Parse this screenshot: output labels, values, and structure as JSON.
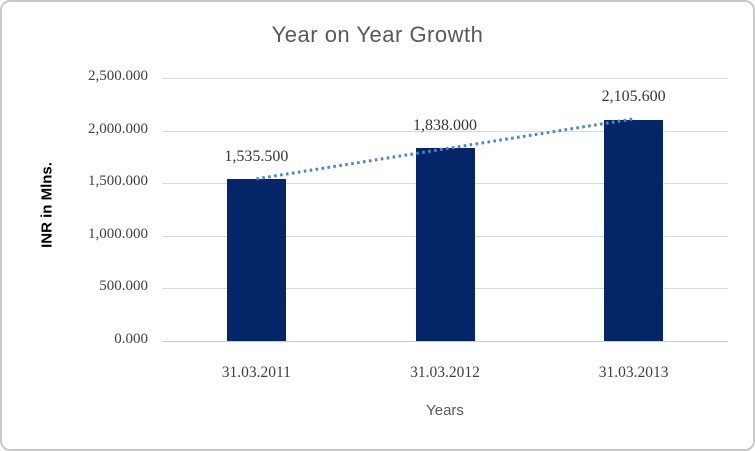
{
  "chart_data": {
    "type": "bar",
    "title": "Year on Year Growth",
    "xlabel": "Years",
    "ylabel": "INR in Mlns.",
    "categories": [
      "31.03.2011",
      "31.03.2012",
      "31.03.2013"
    ],
    "values": [
      1535.5,
      1838.0,
      2105.6
    ],
    "data_labels": [
      "1,535.500",
      "1,838.000",
      "2,105.600"
    ],
    "yticks": [
      {
        "value": 0,
        "label": "0.000"
      },
      {
        "value": 500,
        "label": "500.000"
      },
      {
        "value": 1000,
        "label": "1,000.000"
      },
      {
        "value": 1500,
        "label": "1,500.000"
      },
      {
        "value": 2000,
        "label": "2,000.000"
      },
      {
        "value": 2500,
        "label": "2,500.000"
      }
    ],
    "ylim": [
      0,
      2500
    ],
    "grid": true,
    "legend": "none",
    "trendline": {
      "style": "dotted",
      "start_value": 1541.3,
      "end_value": 2111.4,
      "color": "#4a86c8"
    },
    "colors": {
      "bar": "#042568",
      "gridline": "#d9d9d9",
      "axis_line": "#cccccc",
      "title_text": "#595959",
      "tick_text": "#3f3f3f",
      "data_label_text": "#363636",
      "frame_border": "#c9c9c9",
      "background": "#ffffff"
    }
  }
}
